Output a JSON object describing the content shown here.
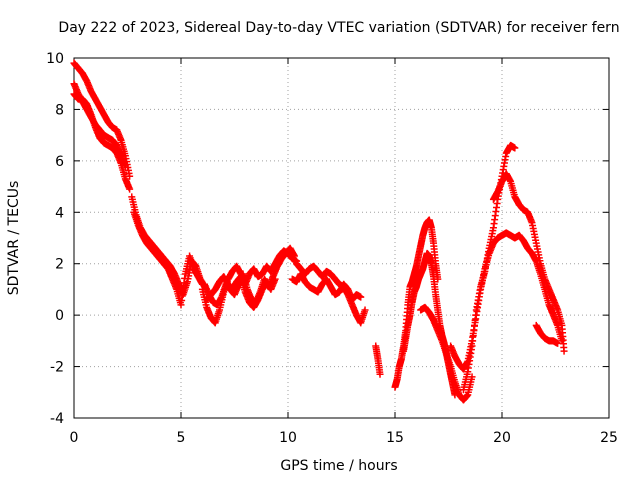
{
  "chart_data": {
    "type": "scatter",
    "title": "Day 222 of 2023, Sidereal Day-to-day VTEC variation (SDTVAR) for receiver fern",
    "xlabel": "GPS time / hours",
    "ylabel": "SDTVAR / TECUs",
    "xlim": [
      0,
      25
    ],
    "ylim": [
      -4,
      10
    ],
    "xticks": [
      "0",
      "5",
      "10",
      "15",
      "20",
      "25"
    ],
    "yticks": [
      "-4",
      "-2",
      "0",
      "2",
      "4",
      "6",
      "8",
      "10"
    ],
    "grid": true,
    "marker": "+",
    "series": [
      {
        "name": "SDTVAR",
        "color": "#ff0000",
        "segments": [
          {
            "x": [
              0.0,
              0.2,
              0.4,
              0.6,
              0.8,
              1.0,
              1.2,
              1.4,
              1.6,
              1.8,
              2.0,
              2.2,
              2.4,
              2.6
            ],
            "y": [
              9.8,
              9.6,
              9.4,
              9.1,
              8.7,
              8.4,
              8.1,
              7.8,
              7.5,
              7.3,
              7.2,
              6.8,
              6.2,
              5.4
            ]
          },
          {
            "x": [
              0.0,
              0.2,
              0.4,
              0.6,
              0.8,
              1.0,
              1.2,
              1.4,
              1.6,
              1.8,
              2.0,
              2.2,
              2.4
            ],
            "y": [
              9.0,
              8.6,
              8.3,
              8.0,
              7.7,
              7.4,
              7.2,
              7.0,
              6.9,
              6.8,
              6.6,
              6.2,
              5.8
            ]
          },
          {
            "x": [
              0.0,
              0.2,
              0.4,
              0.6,
              0.8,
              1.0,
              1.2,
              1.4,
              1.6,
              1.8,
              2.0,
              2.2,
              2.4,
              2.6
            ],
            "y": [
              8.6,
              8.4,
              8.4,
              8.2,
              7.8,
              7.3,
              6.9,
              6.7,
              6.6,
              6.5,
              6.3,
              5.9,
              5.3,
              4.9
            ]
          },
          {
            "x": [
              2.7,
              2.9,
              3.1,
              3.3,
              3.5,
              3.7,
              3.9,
              4.1,
              4.3,
              4.5,
              4.7,
              4.9,
              5.1,
              5.3,
              5.5,
              5.7,
              5.9,
              6.1
            ],
            "y": [
              4.6,
              3.9,
              3.4,
              3.1,
              2.9,
              2.7,
              2.5,
              2.3,
              2.1,
              1.9,
              1.6,
              1.2,
              0.8,
              1.3,
              2.1,
              1.9,
              1.4,
              1.1
            ]
          },
          {
            "x": [
              2.8,
              3.0,
              3.2,
              3.4,
              3.6,
              3.8,
              4.0,
              4.2,
              4.4,
              4.6,
              4.8,
              5.0,
              5.2,
              5.4,
              5.6,
              5.8,
              6.0
            ],
            "y": [
              4.0,
              3.5,
              3.1,
              2.8,
              2.6,
              2.4,
              2.2,
              2.0,
              1.8,
              1.4,
              1.0,
              0.4,
              1.6,
              2.3,
              1.8,
              1.5,
              1.2
            ]
          },
          {
            "x": [
              6.0,
              6.2,
              6.4,
              6.6,
              6.8,
              7.0,
              7.2,
              7.4,
              7.6,
              7.8,
              8.0,
              8.2,
              8.4,
              8.6,
              8.8,
              9.0,
              9.2,
              9.4,
              9.6,
              9.8,
              10.0,
              10.2,
              10.4
            ],
            "y": [
              1.0,
              0.3,
              -0.1,
              -0.3,
              0.2,
              0.9,
              1.4,
              1.7,
              1.9,
              1.6,
              1.2,
              1.6,
              1.8,
              1.5,
              1.6,
              1.9,
              1.7,
              2.0,
              2.3,
              2.5,
              2.4,
              2.2,
              2.1
            ]
          },
          {
            "x": [
              6.1,
              6.3,
              6.5,
              6.7,
              6.9,
              7.1,
              7.3,
              7.5,
              7.7,
              7.9,
              8.1,
              8.3,
              8.5,
              8.7,
              8.9,
              9.1,
              9.3,
              9.5,
              9.7,
              9.9,
              10.1,
              10.3
            ],
            "y": [
              1.2,
              0.8,
              0.5,
              0.4,
              0.7,
              1.2,
              1.0,
              0.8,
              1.2,
              1.6,
              1.0,
              0.6,
              0.5,
              0.9,
              1.4,
              1.1,
              1.5,
              1.9,
              2.2,
              2.4,
              2.6,
              2.3
            ]
          },
          {
            "x": [
              6.2,
              6.4,
              6.6,
              6.8,
              7.0,
              7.2,
              7.4,
              7.6,
              7.8,
              8.0,
              8.2,
              8.4,
              8.6,
              8.8,
              9.0,
              9.2,
              9.4
            ],
            "y": [
              0.6,
              0.8,
              1.0,
              1.3,
              1.5,
              1.2,
              1.0,
              1.3,
              1.5,
              0.9,
              0.5,
              0.3,
              0.6,
              1.0,
              1.3,
              1.0,
              1.4
            ]
          },
          {
            "x": [
              10.4,
              10.6,
              10.8,
              11.0,
              11.2,
              11.4,
              11.6,
              11.8,
              12.0,
              12.2,
              12.4,
              12.6,
              12.8,
              13.0,
              13.2,
              13.4,
              13.6
            ],
            "y": [
              2.0,
              1.8,
              1.6,
              1.8,
              1.9,
              1.7,
              1.5,
              1.7,
              1.6,
              1.4,
              1.2,
              1.1,
              0.8,
              0.4,
              0.0,
              -0.3,
              0.2
            ]
          },
          {
            "x": [
              10.2,
              10.4,
              10.6,
              10.8,
              11.0,
              11.2,
              11.4,
              11.6,
              11.8,
              12.0,
              12.2,
              12.4,
              12.6,
              12.8,
              13.0,
              13.2,
              13.4
            ],
            "y": [
              1.4,
              1.3,
              1.6,
              1.3,
              1.1,
              1.0,
              0.9,
              1.2,
              1.4,
              1.1,
              0.8,
              0.9,
              1.2,
              1.0,
              0.6,
              0.8,
              0.7
            ]
          },
          {
            "x": [
              14.1,
              14.2,
              14.3
            ],
            "y": [
              -1.2,
              -1.7,
              -2.3
            ]
          },
          {
            "x": [
              15.0,
              15.1,
              15.2,
              15.3,
              15.4,
              15.5,
              15.6,
              15.7,
              15.8,
              15.9,
              16.0,
              16.1,
              16.2,
              16.3,
              16.4,
              16.5,
              16.6,
              16.7,
              16.8,
              16.9,
              17.0
            ],
            "y": [
              -2.8,
              -2.5,
              -2.0,
              -1.7,
              -1.2,
              -0.6,
              0.4,
              1.1,
              1.3,
              1.6,
              1.9,
              2.3,
              2.7,
              3.1,
              3.4,
              3.6,
              3.7,
              3.4,
              2.8,
              2.0,
              1.4
            ]
          },
          {
            "x": [
              15.4,
              15.5,
              15.6,
              15.7,
              15.8,
              15.9,
              16.0,
              16.1,
              16.2,
              16.3,
              16.4,
              16.5,
              16.6,
              16.7,
              16.8,
              16.9,
              17.0,
              17.1,
              17.2,
              17.3,
              17.4,
              17.5,
              17.6,
              17.7,
              17.8
            ],
            "y": [
              -1.4,
              -0.9,
              -0.4,
              0.0,
              0.5,
              0.9,
              1.1,
              1.4,
              1.6,
              1.8,
              2.1,
              2.4,
              2.3,
              2.0,
              1.5,
              0.8,
              0.2,
              -0.4,
              -0.8,
              -1.1,
              -1.5,
              -1.9,
              -2.3,
              -2.7,
              -3.1
            ]
          },
          {
            "x": [
              16.2,
              16.4,
              16.6,
              16.8,
              17.0,
              17.2,
              17.4,
              17.6,
              17.8,
              18.0,
              18.2,
              18.4,
              18.6
            ],
            "y": [
              0.2,
              0.3,
              0.1,
              -0.2,
              -0.6,
              -1.0,
              -1.5,
              -2.0,
              -2.6,
              -3.1,
              -3.3,
              -3.1,
              -2.4
            ]
          },
          {
            "x": [
              17.6,
              17.8,
              18.0,
              18.2,
              18.4,
              18.6,
              18.8,
              19.0,
              19.2,
              19.4,
              19.6,
              19.8,
              20.0,
              20.2,
              20.4,
              20.6,
              20.8
            ],
            "y": [
              -1.2,
              -1.6,
              -1.9,
              -2.1,
              -1.8,
              -1.0,
              0.0,
              1.0,
              1.8,
              2.4,
              2.8,
              3.0,
              3.1,
              3.2,
              3.1,
              3.0,
              3.1
            ]
          },
          {
            "x": [
              18.2,
              18.4,
              18.6,
              18.8,
              19.0,
              19.2,
              19.4,
              19.6,
              19.8,
              20.0,
              20.2,
              20.4,
              20.6
            ],
            "y": [
              -2.9,
              -2.2,
              -1.2,
              0.2,
              1.1,
              1.7,
              2.6,
              3.4,
              4.5,
              5.4,
              6.3,
              6.6,
              6.5
            ]
          },
          {
            "x": [
              19.6,
              19.8,
              20.0,
              20.2,
              20.4,
              20.6,
              20.8,
              21.0,
              21.2,
              21.4,
              21.6,
              21.8,
              22.0,
              22.2,
              22.4,
              22.6,
              22.8,
              22.9
            ],
            "y": [
              4.5,
              4.8,
              5.2,
              5.5,
              5.2,
              4.6,
              4.3,
              4.1,
              4.0,
              3.6,
              2.8,
              2.0,
              1.4,
              1.0,
              0.6,
              0.2,
              -0.4,
              -1.4
            ]
          },
          {
            "x": [
              20.8,
              21.0,
              21.2,
              21.4,
              21.6,
              21.8,
              22.0,
              22.2,
              22.4,
              22.6,
              22.8
            ],
            "y": [
              3.1,
              2.9,
              2.6,
              2.4,
              2.1,
              1.6,
              1.0,
              0.4,
              0.0,
              -0.4,
              -1.0
            ]
          },
          {
            "x": [
              21.6,
              21.8,
              22.0,
              22.2,
              22.4,
              22.6
            ],
            "y": [
              -0.4,
              -0.7,
              -0.9,
              -1.0,
              -1.0,
              -1.1
            ]
          }
        ]
      }
    ]
  }
}
